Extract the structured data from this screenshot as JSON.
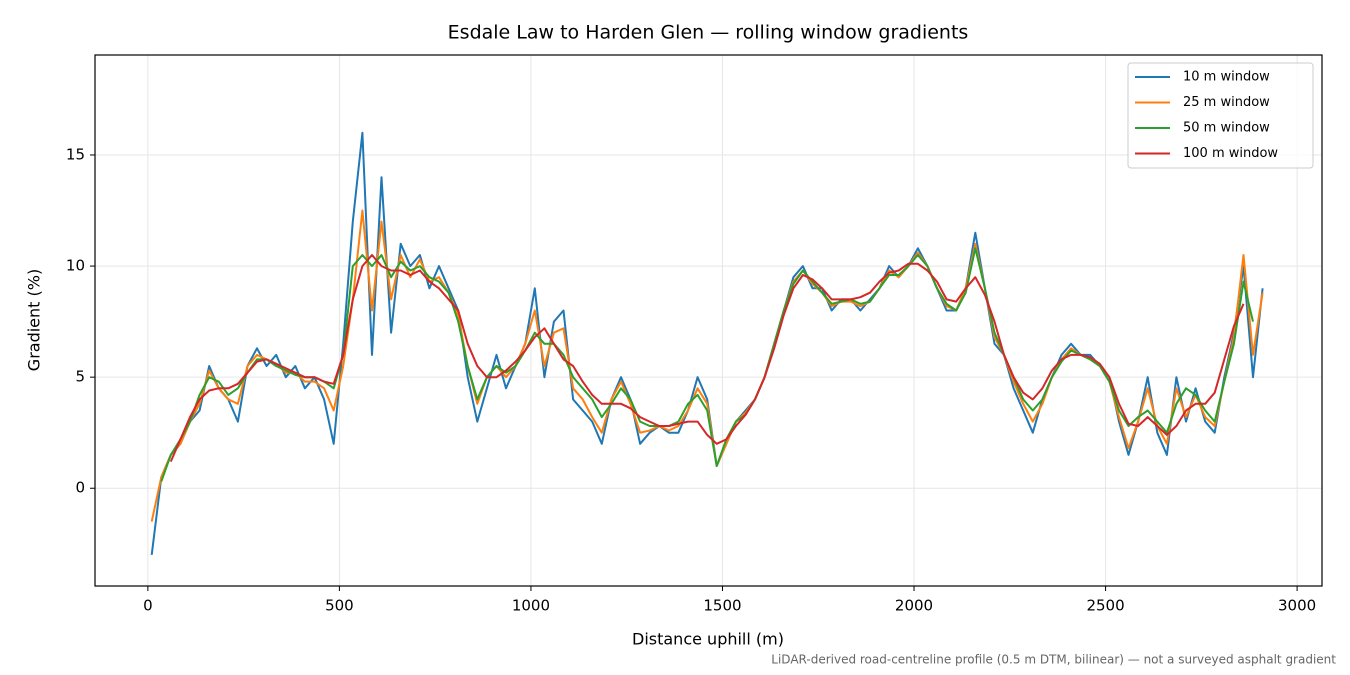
{
  "chart_data": {
    "type": "line",
    "title": "Esdale Law to Harden Glen — rolling window gradients",
    "x_label": "Distance uphill (m)",
    "y_label": "Gradient (%)",
    "footnote": "LiDAR-derived road-centreline profile (0.5 m DTM, bilinear) — not a surveyed asphalt gradient",
    "xlim": [
      -138,
      3065
    ],
    "ylim": [
      -4.4,
      19.5
    ],
    "xticks": [
      0,
      500,
      1000,
      1500,
      2000,
      2500,
      3000
    ],
    "yticks": [
      0,
      5,
      10,
      15
    ],
    "grid": true,
    "legend": "upper right",
    "x": [
      10,
      35,
      60,
      85,
      110,
      135,
      160,
      185,
      210,
      235,
      260,
      285,
      310,
      335,
      360,
      385,
      410,
      435,
      460,
      485,
      510,
      535,
      560,
      585,
      610,
      635,
      660,
      685,
      710,
      735,
      760,
      785,
      810,
      835,
      860,
      885,
      910,
      935,
      960,
      985,
      1010,
      1035,
      1060,
      1085,
      1110,
      1135,
      1160,
      1185,
      1210,
      1235,
      1260,
      1285,
      1310,
      1335,
      1360,
      1385,
      1410,
      1435,
      1460,
      1485,
      1510,
      1535,
      1560,
      1585,
      1610,
      1635,
      1660,
      1685,
      1710,
      1735,
      1760,
      1785,
      1810,
      1835,
      1860,
      1885,
      1910,
      1935,
      1960,
      1985,
      2010,
      2035,
      2060,
      2085,
      2110,
      2135,
      2160,
      2185,
      2210,
      2235,
      2260,
      2285,
      2310,
      2335,
      2360,
      2385,
      2410,
      2435,
      2460,
      2485,
      2510,
      2535,
      2560,
      2585,
      2610,
      2635,
      2660,
      2685,
      2710,
      2735,
      2760,
      2785,
      2810,
      2835,
      2860,
      2885,
      2910
    ],
    "series": [
      {
        "name": "10 m window",
        "color": "#1f77b4",
        "values": [
          -3.0,
          0.5,
          1.5,
          2.0,
          3.0,
          3.5,
          5.5,
          4.5,
          4.0,
          3.0,
          5.5,
          6.3,
          5.5,
          6.0,
          5.0,
          5.5,
          4.5,
          5.0,
          4.0,
          2.0,
          6.5,
          12,
          16,
          6,
          14,
          7,
          11,
          10,
          10.5,
          9,
          10,
          9,
          8,
          5,
          3,
          4.5,
          6,
          4.5,
          5.5,
          6.5,
          9,
          5,
          7.5,
          8,
          4,
          3.5,
          3,
          2,
          4,
          5,
          4,
          2,
          2.5,
          2.8,
          2.5,
          2.5,
          3.5,
          5,
          4,
          1,
          2,
          3,
          3.5,
          4,
          5,
          6.5,
          8,
          9.5,
          10,
          9,
          9,
          8,
          8.5,
          8.5,
          8,
          8.5,
          9,
          10,
          9.5,
          10,
          10.8,
          10,
          9,
          8,
          8,
          9,
          11.5,
          9,
          6.5,
          6,
          4.5,
          3.5,
          2.5,
          4,
          5,
          6,
          6.5,
          6,
          6,
          5.5,
          5,
          3,
          1.5,
          3,
          5,
          2.5,
          1.5,
          5,
          3,
          4.5,
          3,
          2.5,
          5,
          7,
          10,
          5,
          9
        ]
      },
      {
        "name": "25 m window",
        "color": "#ff7f0e",
        "values": [
          -1.5,
          0.5,
          1.5,
          2.0,
          3,
          3.8,
          5.3,
          4.5,
          4,
          3.8,
          5.5,
          6,
          5.8,
          5.6,
          5.2,
          5.2,
          4.8,
          4.8,
          4.5,
          3.5,
          5.5,
          8.5,
          12.5,
          8,
          12,
          8.5,
          10.5,
          9.5,
          10.3,
          9.3,
          9.5,
          8.8,
          7.8,
          5.5,
          3.8,
          5,
          5.5,
          5,
          5.5,
          6.5,
          8,
          5.5,
          7,
          7.2,
          4.5,
          4,
          3.2,
          2.5,
          4,
          4.8,
          3.8,
          2.5,
          2.6,
          2.8,
          2.6,
          2.8,
          3.5,
          4.5,
          3.8,
          1,
          2,
          3,
          3.4,
          4,
          5,
          6.5,
          8,
          9.3,
          9.8,
          9.2,
          8.8,
          8.2,
          8.4,
          8.4,
          8.2,
          8.4,
          9,
          9.8,
          9.5,
          10,
          10.6,
          10,
          9,
          8.2,
          8,
          9,
          11,
          9,
          6.8,
          6,
          4.8,
          3.8,
          3,
          3.8,
          5,
          5.8,
          6.3,
          6,
          5.8,
          5.5,
          4.8,
          3.2,
          1.8,
          3,
          4.5,
          2.8,
          2,
          4.5,
          3.2,
          4.2,
          3.2,
          2.8,
          4.8,
          6.8,
          10.5,
          6,
          8.8
        ]
      },
      {
        "name": "50 m window",
        "color": "#2ca02c",
        "values": [
          null,
          0.3,
          1.5,
          2.2,
          3,
          4.2,
          5,
          4.8,
          4.2,
          4.5,
          5.2,
          5.8,
          5.8,
          5.5,
          5.3,
          5.1,
          5,
          5,
          4.8,
          4.5,
          6,
          10,
          10.5,
          10,
          10.5,
          9.5,
          10.2,
          9.8,
          10,
          9.5,
          9.3,
          8.8,
          7.5,
          5.5,
          4,
          5,
          5.5,
          5.2,
          5.5,
          6.2,
          7,
          6.5,
          6.5,
          6,
          5,
          4.5,
          4,
          3.2,
          3.8,
          4.5,
          4,
          3,
          2.8,
          2.8,
          2.8,
          3,
          3.8,
          4.2,
          3.5,
          1,
          2.2,
          3,
          3.3,
          4,
          5,
          6.5,
          8,
          9.2,
          9.8,
          9.3,
          8.8,
          8.3,
          8.4,
          8.5,
          8.3,
          8.4,
          9,
          9.6,
          9.6,
          10,
          10.5,
          10,
          9,
          8.3,
          8,
          8.8,
          10.8,
          9,
          7,
          6,
          5,
          4,
          3.5,
          4,
          5,
          5.7,
          6.2,
          6,
          5.8,
          5.5,
          4.8,
          3.5,
          2.8,
          3.2,
          3.5,
          3,
          2.5,
          3.8,
          4.5,
          4.2,
          3.5,
          3,
          4.8,
          6.5,
          9.3,
          7.5,
          null
        ]
      },
      {
        "name": "100 m window",
        "color": "#d62728",
        "values": [
          null,
          null,
          1.2,
          2.2,
          3.2,
          4,
          4.4,
          4.5,
          4.5,
          4.7,
          5.2,
          5.7,
          5.8,
          5.6,
          5.4,
          5.2,
          5,
          5,
          4.8,
          4.7,
          6,
          8.5,
          10,
          10.5,
          10,
          9.8,
          9.8,
          9.6,
          9.8,
          9.3,
          9,
          8.5,
          8,
          6.5,
          5.5,
          5,
          5,
          5.3,
          5.7,
          6.2,
          6.8,
          7.2,
          6.5,
          5.8,
          5.5,
          4.8,
          4.2,
          3.8,
          3.8,
          3.8,
          3.6,
          3.2,
          3,
          2.8,
          2.8,
          2.9,
          3,
          3,
          2.4,
          2,
          2.2,
          2.8,
          3.3,
          4,
          5,
          6.3,
          7.8,
          9,
          9.6,
          9.4,
          9,
          8.5,
          8.5,
          8.5,
          8.6,
          8.8,
          9.3,
          9.7,
          9.8,
          10.1,
          10.1,
          9.8,
          9.3,
          8.5,
          8.4,
          9,
          9.5,
          8.7,
          7.5,
          6,
          5,
          4.3,
          4,
          4.5,
          5.3,
          5.8,
          6,
          6,
          5.9,
          5.6,
          5,
          3.8,
          2.9,
          2.8,
          3.2,
          2.8,
          2.4,
          2.8,
          3.5,
          3.8,
          3.8,
          4.3,
          5.8,
          7.3,
          8.3,
          null,
          null
        ]
      }
    ]
  }
}
